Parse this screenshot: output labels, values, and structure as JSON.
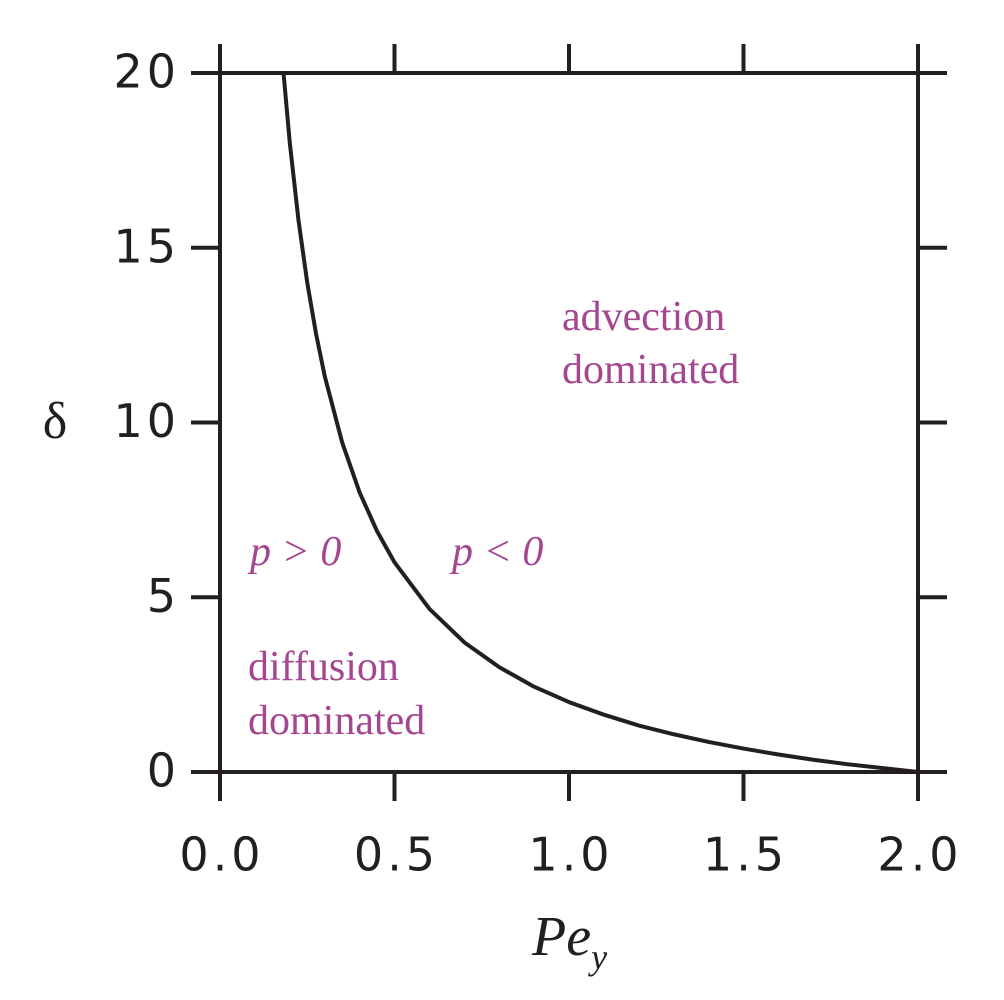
{
  "chart_data": {
    "type": "line",
    "xlabel": {
      "text": "Pe",
      "subscript": "y"
    },
    "ylabel": "δ",
    "x": [
      0.182,
      0.2,
      0.225,
      0.25,
      0.275,
      0.3,
      0.35,
      0.4,
      0.45,
      0.5,
      0.6,
      0.7,
      0.8,
      0.9,
      1.0,
      1.1,
      1.2,
      1.3,
      1.4,
      1.5,
      1.6,
      1.7,
      1.8,
      1.9,
      2.0
    ],
    "series": [
      {
        "color": "#231f20",
        "values": [
          20.0,
          18.0,
          15.78,
          14.0,
          12.55,
          11.33,
          9.43,
          8.0,
          6.89,
          6.0,
          4.67,
          3.71,
          3.0,
          2.44,
          2.0,
          1.64,
          1.33,
          1.08,
          0.86,
          0.67,
          0.5,
          0.35,
          0.22,
          0.11,
          0.0
        ]
      }
    ],
    "xlim": [
      0,
      2
    ],
    "ylim": [
      0,
      20
    ],
    "xticks": [
      {
        "value": 0,
        "label": "0.0"
      },
      0.5,
      {
        "value": 1,
        "label": "1.0"
      },
      1.5,
      {
        "value": 2,
        "label": "2.0"
      }
    ],
    "yticks": [
      0,
      5,
      10,
      15,
      20
    ],
    "annotations": {
      "advection": [
        "advection",
        "dominated"
      ],
      "diffusion": [
        "diffusion",
        "dominated"
      ],
      "p_pos": "p > 0",
      "p_neg": "p < 0"
    }
  }
}
